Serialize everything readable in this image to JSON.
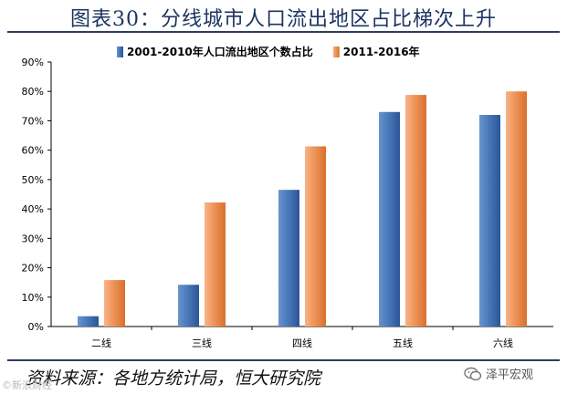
{
  "header": {
    "title": "图表30：分线城市人口流出地区占比梯次上升"
  },
  "footer": {
    "source": "资料来源：各地方统计局，恒大研究院",
    "watermark": "©新浪财经",
    "brand": "泽平宏观"
  },
  "chart_data": {
    "type": "bar",
    "title": "图表30：分线城市人口流出地区占比梯次上升",
    "categories": [
      "二线",
      "三线",
      "四线",
      "五线",
      "六线"
    ],
    "series": [
      {
        "name": "2001-2010年人口流出地区个数占比",
        "values": [
          3.5,
          14.2,
          46.5,
          73,
          72
        ],
        "color": "#3f6fb0"
      },
      {
        "name": "2011-2016年",
        "values": [
          15.8,
          42.2,
          61.3,
          78.8,
          80
        ],
        "color": "#e8864a"
      }
    ],
    "ylim": [
      0,
      90
    ],
    "yticks": [
      "0%",
      "10%",
      "20%",
      "30%",
      "40%",
      "50%",
      "60%",
      "70%",
      "80%",
      "90%"
    ],
    "xlabel": "",
    "ylabel": "",
    "legend": "top-center",
    "grid": false
  }
}
